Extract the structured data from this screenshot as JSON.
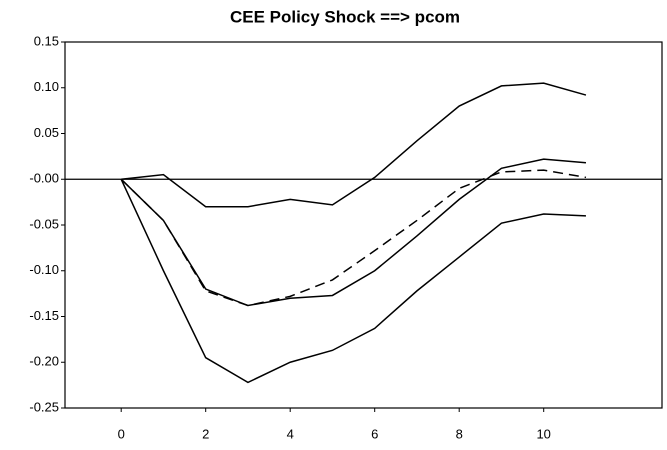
{
  "chart_data": {
    "type": "line",
    "title": "CEE Policy Shock ==> pcom",
    "x": [
      0,
      1,
      2,
      3,
      4,
      5,
      6,
      7,
      8,
      9,
      10,
      11
    ],
    "series": [
      {
        "color": "#000000",
        "values": [
          0,
          0.005,
          -0.03,
          -0.03,
          -0.022,
          -0.028,
          0.002,
          0.042,
          0.08,
          0.102,
          0.105,
          0.092
        ]
      },
      {
        "color": "#000000",
        "values": [
          0,
          -0.045,
          -0.12,
          -0.138,
          -0.13,
          -0.127,
          -0.1,
          -0.062,
          -0.022,
          0.012,
          0.022,
          0.018
        ]
      },
      {
        "color": "#000000",
        "dashed": true,
        "values": [
          0,
          -0.045,
          -0.122,
          -0.138,
          -0.128,
          -0.11,
          -0.078,
          -0.045,
          -0.01,
          0.008,
          0.01,
          0.002
        ]
      },
      {
        "color": "#000000",
        "values": [
          0,
          -0.1,
          -0.195,
          -0.222,
          -0.2,
          -0.187,
          -0.163,
          -0.122,
          -0.085,
          -0.048,
          -0.038,
          -0.04
        ]
      }
    ],
    "xlim": [
      -1.33,
      12.8
    ],
    "xticks": [
      0,
      2,
      4,
      6,
      8,
      10
    ],
    "ylim": [
      -0.25,
      0.15
    ],
    "yticks": [
      {
        "value": 0.15,
        "label": "0.15"
      },
      {
        "value": 0.1,
        "label": "0.10"
      },
      {
        "value": 0.05,
        "label": "0.05"
      },
      {
        "value": 0,
        "label": "-0.00"
      },
      {
        "value": -0.05,
        "label": "-0.05"
      },
      {
        "value": -0.1,
        "label": "-0.10"
      },
      {
        "value": -0.15,
        "label": "-0.15"
      },
      {
        "value": -0.2,
        "label": "-0.20"
      },
      {
        "value": -0.25,
        "label": "-0.25"
      }
    ],
    "zero_line": true
  }
}
